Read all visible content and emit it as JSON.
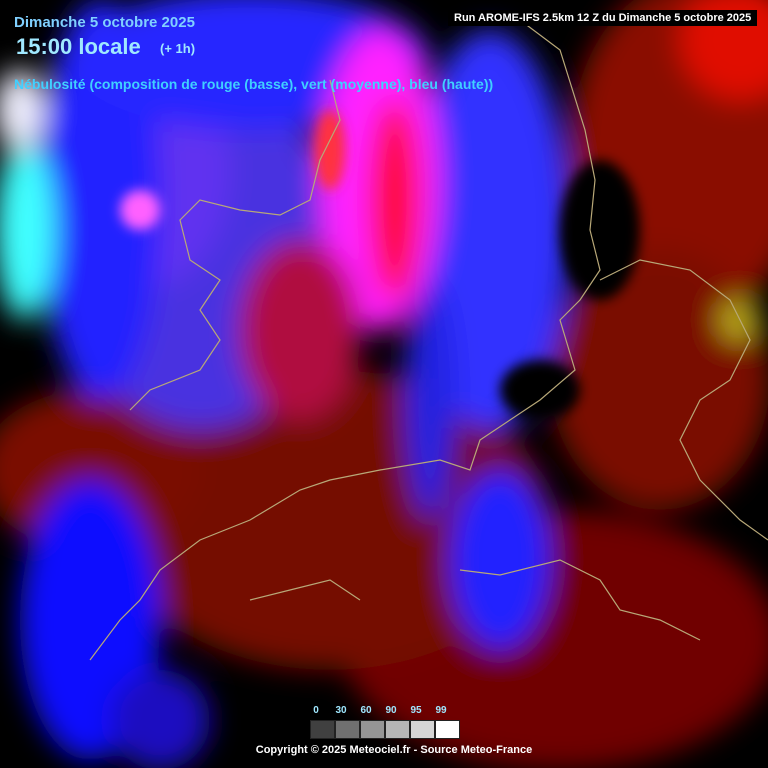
{
  "header": {
    "date": "Dimanche 5 octobre 2025",
    "time": "15:00 locale",
    "offset": "(+ 1h)",
    "description": "Nébulosité (composition de rouge (basse), vert (moyenne), bleu (haute))",
    "run": "Run AROME-IFS 2.5km 12 Z du Dimanche 5 octobre 2025"
  },
  "legend": {
    "labels": [
      0,
      30,
      60,
      90,
      95,
      99
    ]
  },
  "footer": {
    "copyright": "Copyright © 2025 Meteociel.fr - Source Meteo-France"
  }
}
